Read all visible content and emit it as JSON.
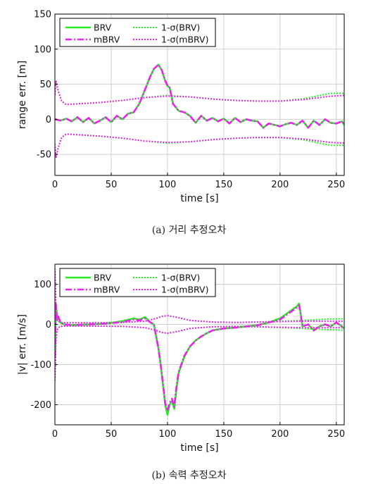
{
  "figure": {
    "caption_a": "(a) 거리 추정오차",
    "caption_b": "(b) 속력 추정오차"
  },
  "chart_data": [
    {
      "type": "line",
      "xlabel": "time [s]",
      "ylabel": "range err. [m]",
      "xlim": [
        0,
        257
      ],
      "ylim": [
        -80,
        150
      ],
      "xticks": [
        0,
        50,
        100,
        150,
        200,
        250
      ],
      "yticks": [
        -50,
        0,
        50,
        100,
        150
      ],
      "grid": true,
      "legend_position": "top-left",
      "series": [
        {
          "name": "BRV",
          "style": "solid",
          "color": "#22ee22",
          "x": [
            0,
            5,
            10,
            15,
            20,
            25,
            30,
            35,
            40,
            45,
            50,
            55,
            60,
            65,
            70,
            75,
            80,
            85,
            88,
            92,
            95,
            98,
            100,
            102,
            105,
            110,
            115,
            120,
            125,
            130,
            135,
            140,
            145,
            150,
            155,
            160,
            165,
            170,
            175,
            180,
            185,
            190,
            195,
            200,
            205,
            210,
            215,
            220,
            225,
            230,
            235,
            240,
            245,
            250,
            255,
            257
          ],
          "y": [
            0,
            -2,
            1,
            -3,
            3,
            -4,
            2,
            -6,
            -2,
            3,
            -4,
            5,
            0,
            8,
            10,
            22,
            42,
            62,
            72,
            78,
            70,
            55,
            48,
            45,
            22,
            12,
            10,
            5,
            -5,
            5,
            -2,
            2,
            -3,
            1,
            -6,
            2,
            -4,
            0,
            -2,
            -3,
            -12,
            -6,
            -8,
            -10,
            -7,
            -5,
            -8,
            -2,
            -12,
            -2,
            -8,
            0,
            -5,
            -6,
            -3,
            -8
          ]
        },
        {
          "name": "mBRV",
          "style": "dashdot",
          "color": "#ee22ee",
          "x": [
            0,
            5,
            10,
            15,
            20,
            25,
            30,
            35,
            40,
            45,
            50,
            55,
            60,
            65,
            70,
            75,
            80,
            85,
            88,
            92,
            95,
            98,
            100,
            102,
            105,
            110,
            115,
            120,
            125,
            130,
            135,
            140,
            145,
            150,
            155,
            160,
            165,
            170,
            175,
            180,
            185,
            190,
            195,
            200,
            205,
            210,
            215,
            220,
            225,
            230,
            235,
            240,
            245,
            250,
            255,
            257
          ],
          "y": [
            0,
            -2,
            1,
            -3,
            3,
            -4,
            2,
            -6,
            -2,
            3,
            -4,
            5,
            0,
            8,
            10,
            22,
            42,
            62,
            72,
            78,
            70,
            55,
            48,
            45,
            22,
            12,
            10,
            5,
            -5,
            5,
            -2,
            2,
            -3,
            1,
            -6,
            2,
            -4,
            0,
            -2,
            -3,
            -12,
            -6,
            -8,
            -10,
            -7,
            -5,
            -8,
            -2,
            -12,
            -2,
            -8,
            0,
            -5,
            -6,
            -3,
            -8
          ]
        },
        {
          "name": "1-σ(BRV)",
          "style": "dotted",
          "color": "#22ee22",
          "x": [
            0,
            1,
            3,
            6,
            10,
            20,
            40,
            60,
            80,
            100,
            120,
            140,
            160,
            180,
            200,
            220,
            235,
            245,
            257
          ],
          "y": [
            35,
            55,
            40,
            26,
            21,
            22,
            24,
            27,
            31,
            34,
            32,
            29,
            27,
            26,
            26,
            29,
            34,
            37,
            37
          ]
        },
        {
          "name": "1-σ(mBRV)",
          "style": "dotted",
          "color": "#ee22ee",
          "x": [
            0,
            1,
            3,
            6,
            10,
            20,
            40,
            60,
            80,
            100,
            120,
            140,
            160,
            180,
            200,
            220,
            235,
            245,
            257
          ],
          "y": [
            35,
            55,
            40,
            26,
            21,
            22,
            24,
            27,
            31,
            33,
            32,
            29,
            27,
            26,
            26,
            28,
            31,
            33,
            34
          ]
        }
      ],
      "sigma_symmetric": true
    },
    {
      "type": "line",
      "xlabel": "time [s]",
      "ylabel": "|v| err. [m/s]",
      "xlim": [
        0,
        257
      ],
      "ylim": [
        -250,
        150
      ],
      "xticks": [
        0,
        50,
        100,
        150,
        200,
        250
      ],
      "yticks": [
        -200,
        -100,
        0,
        100
      ],
      "grid": true,
      "legend_position": "top-left",
      "series": [
        {
          "name": "BRV",
          "style": "solid",
          "color": "#22ee22",
          "x": [
            0,
            1,
            2,
            3,
            5,
            8,
            15,
            30,
            45,
            60,
            70,
            75,
            80,
            85,
            88,
            90,
            92,
            94,
            96,
            98,
            100,
            102,
            104,
            106,
            108,
            110,
            115,
            120,
            125,
            130,
            135,
            140,
            150,
            160,
            170,
            180,
            190,
            200,
            205,
            210,
            215,
            217,
            220,
            225,
            230,
            235,
            240,
            245,
            250,
            255,
            257
          ],
          "y": [
            -80,
            50,
            10,
            20,
            5,
            0,
            -2,
            0,
            2,
            8,
            15,
            12,
            18,
            5,
            0,
            -30,
            -60,
            -100,
            -150,
            -200,
            -225,
            -200,
            -190,
            -210,
            -160,
            -120,
            -80,
            -55,
            -40,
            -30,
            -22,
            -15,
            -10,
            -8,
            -5,
            -2,
            5,
            15,
            25,
            35,
            45,
            52,
            -5,
            0,
            -15,
            -5,
            0,
            -5,
            5,
            -5,
            -10
          ]
        },
        {
          "name": "mBRV",
          "style": "dashdot",
          "color": "#ee22ee",
          "x": [
            0,
            1,
            2,
            3,
            5,
            8,
            15,
            30,
            45,
            60,
            70,
            75,
            80,
            85,
            88,
            90,
            92,
            94,
            96,
            98,
            100,
            102,
            104,
            106,
            108,
            110,
            115,
            120,
            125,
            130,
            135,
            140,
            150,
            160,
            170,
            180,
            190,
            200,
            205,
            210,
            215,
            217,
            220,
            225,
            230,
            235,
            240,
            245,
            250,
            255,
            257
          ],
          "y": [
            -80,
            50,
            10,
            20,
            5,
            0,
            -2,
            0,
            2,
            6,
            12,
            10,
            15,
            5,
            0,
            -30,
            -60,
            -100,
            -145,
            -195,
            -215,
            -195,
            -185,
            -205,
            -155,
            -118,
            -78,
            -55,
            -40,
            -30,
            -22,
            -15,
            -10,
            -8,
            -5,
            -2,
            5,
            12,
            22,
            32,
            42,
            48,
            -5,
            0,
            -15,
            -5,
            0,
            -5,
            5,
            -5,
            -10
          ]
        },
        {
          "name": "1-σ(BRV)",
          "style": "dotted",
          "color": "#22ee22",
          "x": [
            0,
            0.5,
            1,
            2,
            3,
            5,
            10,
            30,
            60,
            80,
            90,
            95,
            100,
            110,
            120,
            140,
            160,
            180,
            200,
            220,
            240,
            257
          ],
          "y": [
            140,
            100,
            40,
            15,
            8,
            5,
            4,
            4,
            5,
            8,
            15,
            20,
            22,
            17,
            10,
            6,
            5,
            6,
            8,
            10,
            13,
            14
          ]
        },
        {
          "name": "1-σ(mBRV)",
          "style": "dotted",
          "color": "#ee22ee",
          "x": [
            0,
            0.5,
            1,
            2,
            3,
            5,
            10,
            30,
            60,
            80,
            90,
            95,
            100,
            110,
            120,
            140,
            160,
            180,
            200,
            220,
            240,
            257
          ],
          "y": [
            140,
            100,
            40,
            15,
            8,
            5,
            4,
            4,
            5,
            8,
            15,
            20,
            22,
            17,
            10,
            6,
            5,
            6,
            7,
            8,
            8,
            8
          ]
        }
      ],
      "sigma_symmetric": true
    }
  ]
}
